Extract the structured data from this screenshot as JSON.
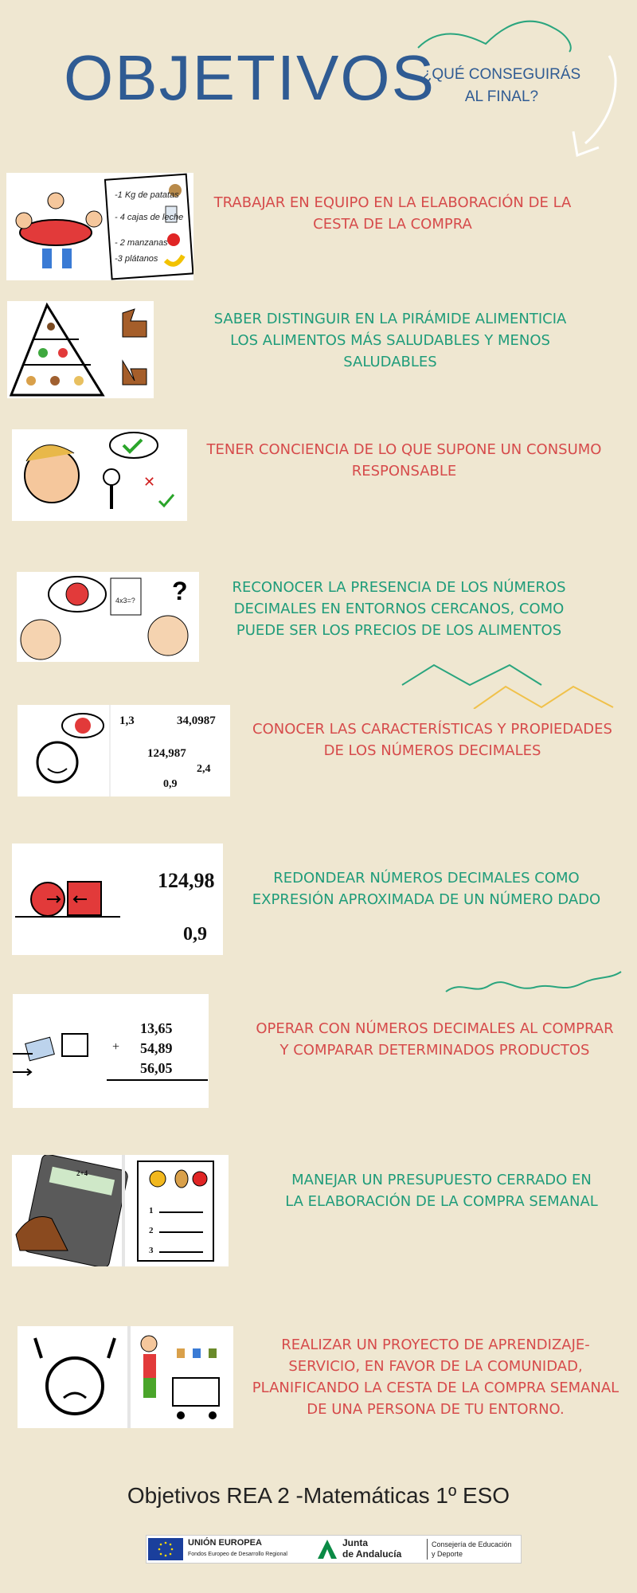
{
  "header": {
    "title": "OBJETIVOS",
    "subtitle_line1": "¿QUÉ CONSEGUIRÁS",
    "subtitle_line2": "AL FINAL?"
  },
  "colors": {
    "accent_blue": "#2f5b93",
    "red_text": "#d64b4b",
    "green_text": "#1f9c7a",
    "background": "#efe7d1"
  },
  "objectives": [
    {
      "text": "TRABAJAR EN EQUIPO EN LA ELABORACIÓN DE LA CESTA DE LA COMPRA",
      "color": "red",
      "note_lines": [
        "-1 Kg de patatas",
        "- 4 cajas de leche",
        "- 2 manzanas",
        "-3 plátanos"
      ]
    },
    {
      "text": "SABER DISTINGUIR EN LA PIRÁMIDE ALIMENTICIA LOS ALIMENTOS MÁS SALUDABLES Y MENOS SALUDABLES",
      "color": "green"
    },
    {
      "text": "TENER CONCIENCIA DE LO QUE SUPONE UN CONSUMO RESPONSABLE",
      "color": "red"
    },
    {
      "text": "RECONOCER LA PRESENCIA DE LOS NÚMEROS DECIMALES EN ENTORNOS CERCANOS, COMO PUEDE SER LOS PRECIOS DE LOS ALIMENTOS",
      "color": "green",
      "card_text": "4x3=?"
    },
    {
      "text": "CONOCER LAS CARACTERÍSTICAS Y PROPIEDADES DE LOS NÚMEROS DECIMALES",
      "color": "red",
      "numbers": [
        "1,3",
        "34,0987",
        "124,987",
        "2,4",
        "0,9"
      ]
    },
    {
      "text": "REDONDEAR NÚMEROS DECIMALES COMO EXPRESIÓN APROXIMADA DE UN NÚMERO DADO",
      "color": "green",
      "numbers": [
        "124,98",
        "0,9"
      ]
    },
    {
      "text": "OPERAR CON NÚMEROS DECIMALES AL COMPRAR Y COMPARAR DETERMINADOS PRODUCTOS",
      "color": "red",
      "numbers": [
        "13,65",
        "54,89",
        "56,05"
      ],
      "plus": "+"
    },
    {
      "text": "MANEJAR UN PRESUPUESTO CERRADO EN LA ELABORACIÓN DE LA COMPRA SEMANAL",
      "color": "green",
      "calc_display": "2+4",
      "list_numbers": [
        "1",
        "2",
        "3"
      ]
    },
    {
      "text": "REALIZAR UN PROYECTO DE APRENDIZAJE-SERVICIO, EN FAVOR DE LA COMUNIDAD, PLANIFICANDO LA CESTA DE LA COMPRA SEMANAL DE UNA PERSONA DE TU ENTORNO.",
      "color": "red"
    }
  ],
  "footer": {
    "title": "Objetivos REA 2 -Matemáticas 1º ESO",
    "eu_line1": "UNIÓN EUROPEA",
    "eu_line2": "Fondos Europeo de Desarrollo Regional",
    "junta_line1": "Junta",
    "junta_line2": "de Andalucía",
    "consejeria_line1": "Consejería de Educación",
    "consejeria_line2": "y Deporte"
  }
}
